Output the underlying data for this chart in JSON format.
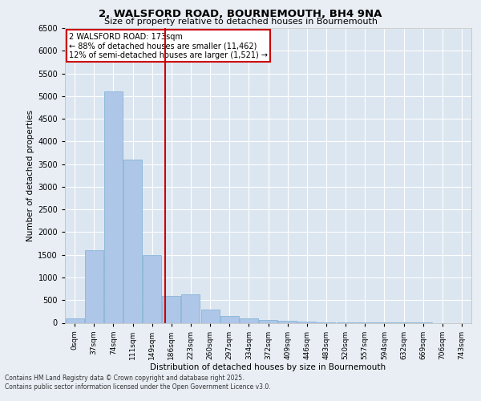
{
  "title1": "2, WALSFORD ROAD, BOURNEMOUTH, BH4 9NA",
  "title2": "Size of property relative to detached houses in Bournemouth",
  "xlabel": "Distribution of detached houses by size in Bournemouth",
  "ylabel": "Number of detached properties",
  "bin_labels": [
    "0sqm",
    "37sqm",
    "74sqm",
    "111sqm",
    "149sqm",
    "186sqm",
    "223sqm",
    "260sqm",
    "297sqm",
    "334sqm",
    "372sqm",
    "409sqm",
    "446sqm",
    "483sqm",
    "520sqm",
    "557sqm",
    "594sqm",
    "632sqm",
    "669sqm",
    "706sqm",
    "743sqm"
  ],
  "bar_values": [
    100,
    1600,
    5100,
    3600,
    1500,
    600,
    620,
    300,
    150,
    100,
    60,
    40,
    20,
    10,
    5,
    3,
    2,
    1,
    1,
    0,
    0
  ],
  "bar_color": "#aec6e8",
  "bar_edgecolor": "#7aafd4",
  "vline_x": 4.67,
  "vline_color": "#cc0000",
  "annotation_text": "2 WALSFORD ROAD: 173sqm\n← 88% of detached houses are smaller (11,462)\n12% of semi-detached houses are larger (1,521) →",
  "annotation_box_color": "#cc0000",
  "ylim": [
    0,
    6500
  ],
  "yticks": [
    0,
    500,
    1000,
    1500,
    2000,
    2500,
    3000,
    3500,
    4000,
    4500,
    5000,
    5500,
    6000,
    6500
  ],
  "footer1": "Contains HM Land Registry data © Crown copyright and database right 2025.",
  "footer2": "Contains public sector information licensed under the Open Government Licence v3.0.",
  "bg_color": "#e8eef4",
  "plot_bg_color": "#dce6f0"
}
